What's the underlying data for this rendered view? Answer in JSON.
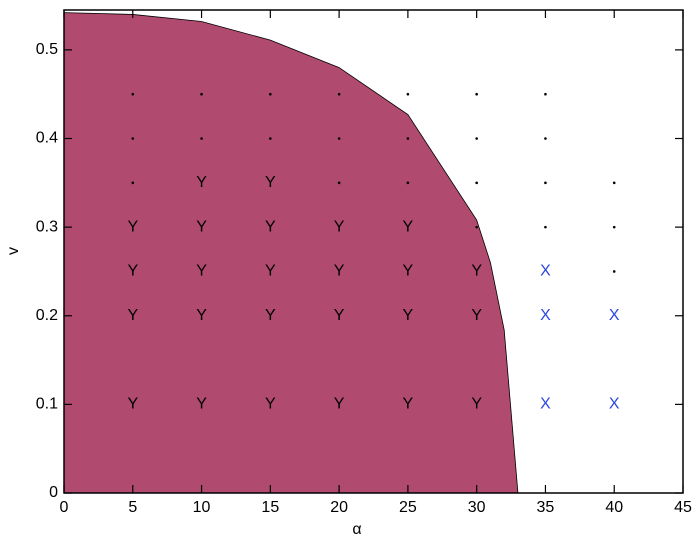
{
  "chart_data": {
    "type": "scatter",
    "xlabel": "α",
    "ylabel": "v",
    "xlim": [
      0,
      45
    ],
    "ylim": [
      0,
      0.545
    ],
    "xticks": [
      0,
      5,
      10,
      15,
      20,
      25,
      30,
      35,
      40,
      45
    ],
    "yticks": [
      0,
      0.1,
      0.2,
      0.3,
      0.4,
      0.5
    ],
    "series": [
      {
        "type": "area",
        "color": "#b04a6e",
        "x": [
          0,
          5,
          10,
          15,
          20,
          25,
          30,
          31,
          32,
          33
        ],
        "values": [
          0.542,
          0.54,
          0.532,
          0.511,
          0.48,
          0.427,
          0.308,
          0.26,
          0.184,
          0
        ]
      },
      {
        "type": "scatter",
        "marker": ".",
        "color": "#000000",
        "x": [
          5,
          5,
          5,
          10,
          10,
          15,
          15,
          20,
          20,
          20,
          25,
          25,
          25,
          30,
          30,
          30,
          30,
          35,
          35,
          35,
          35,
          40,
          40,
          40
        ],
        "values": [
          0.45,
          0.4,
          0.35,
          0.45,
          0.4,
          0.45,
          0.4,
          0.45,
          0.4,
          0.35,
          0.45,
          0.4,
          0.35,
          0.45,
          0.4,
          0.35,
          0.3,
          0.45,
          0.4,
          0.35,
          0.3,
          0.35,
          0.3,
          0.25
        ]
      },
      {
        "type": "scatter",
        "marker": "Y",
        "color": "#000000",
        "x": [
          5,
          5,
          5,
          5,
          10,
          10,
          10,
          10,
          10,
          15,
          15,
          15,
          15,
          15,
          20,
          20,
          20,
          20,
          25,
          25,
          25,
          25,
          30,
          30,
          30
        ],
        "values": [
          0.3,
          0.25,
          0.2,
          0.1,
          0.35,
          0.3,
          0.25,
          0.2,
          0.1,
          0.35,
          0.3,
          0.25,
          0.2,
          0.1,
          0.3,
          0.25,
          0.2,
          0.1,
          0.3,
          0.25,
          0.2,
          0.1,
          0.25,
          0.2,
          0.1
        ]
      },
      {
        "type": "scatter",
        "marker": "X",
        "color": "#2a45e0",
        "x": [
          35,
          35,
          35,
          40,
          40
        ],
        "values": [
          0.25,
          0.2,
          0.1,
          0.2,
          0.1
        ]
      }
    ]
  }
}
